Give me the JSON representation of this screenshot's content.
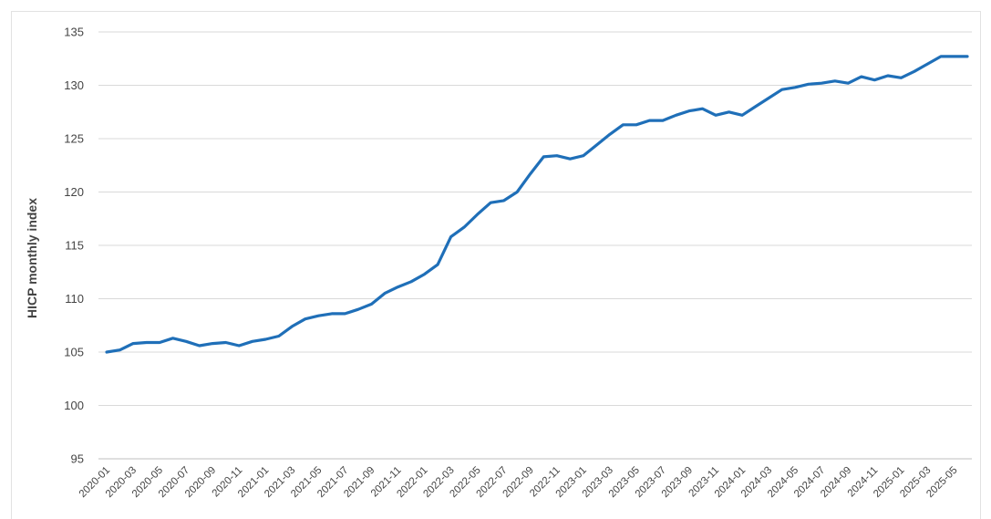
{
  "chart_data": {
    "type": "line",
    "title": "",
    "xlabel": "",
    "ylabel": "HICP monthly index",
    "ylim": [
      95,
      135
    ],
    "yticks": [
      95,
      100,
      105,
      110,
      115,
      120,
      125,
      130,
      135
    ],
    "grid": true,
    "legend": "none",
    "line_color": "#1f6fb8",
    "x_tick_labels": [
      "2020-01",
      "2020-03",
      "2020-05",
      "2020-07",
      "2020-09",
      "2020-11",
      "2021-01",
      "2021-03",
      "2021-05",
      "2021-07",
      "2021-09",
      "2021-11",
      "2022-01",
      "2022-03",
      "2022-05",
      "2022-07",
      "2022-09",
      "2022-11",
      "2023-01",
      "2023-03",
      "2023-05",
      "2023-07",
      "2023-09",
      "2023-11",
      "2024-01",
      "2024-03",
      "2024-05",
      "2024-07",
      "2024-09",
      "2024-11",
      "2025-01",
      "2025-03",
      "2025-05"
    ],
    "x": [
      "2020-01",
      "2020-02",
      "2020-03",
      "2020-04",
      "2020-05",
      "2020-06",
      "2020-07",
      "2020-08",
      "2020-09",
      "2020-10",
      "2020-11",
      "2020-12",
      "2021-01",
      "2021-02",
      "2021-03",
      "2021-04",
      "2021-05",
      "2021-06",
      "2021-07",
      "2021-08",
      "2021-09",
      "2021-10",
      "2021-11",
      "2021-12",
      "2022-01",
      "2022-02",
      "2022-03",
      "2022-04",
      "2022-05",
      "2022-06",
      "2022-07",
      "2022-08",
      "2022-09",
      "2022-10",
      "2022-11",
      "2022-12",
      "2023-01",
      "2023-02",
      "2023-03",
      "2023-04",
      "2023-05",
      "2023-06",
      "2023-07",
      "2023-08",
      "2023-09",
      "2023-10",
      "2023-11",
      "2023-12",
      "2024-01",
      "2024-02",
      "2024-03",
      "2024-04",
      "2024-05",
      "2024-06",
      "2024-07",
      "2024-08",
      "2024-09",
      "2024-10",
      "2024-11",
      "2024-12",
      "2025-01",
      "2025-02",
      "2025-03",
      "2025-04",
      "2025-05",
      "2025-06"
    ],
    "series": [
      {
        "values": [
          105.0,
          105.2,
          105.8,
          105.9,
          105.9,
          106.3,
          106.0,
          105.6,
          105.8,
          105.9,
          105.6,
          106.0,
          106.2,
          106.5,
          107.4,
          108.1,
          108.4,
          108.6,
          108.6,
          109.0,
          109.5,
          110.5,
          111.1,
          111.6,
          112.3,
          113.2,
          115.8,
          116.7,
          117.9,
          119.0,
          119.2,
          120.0,
          121.7,
          123.3,
          123.4,
          123.1,
          123.4,
          124.4,
          125.4,
          126.3,
          126.3,
          126.7,
          126.7,
          127.2,
          127.6,
          127.8,
          127.2,
          127.5,
          127.2,
          128.0,
          128.8,
          129.6,
          129.8,
          130.1,
          130.2,
          130.4,
          130.2,
          130.8,
          130.5,
          130.9,
          130.7,
          131.3,
          132.0,
          132.7,
          132.7,
          132.7
        ]
      }
    ]
  }
}
